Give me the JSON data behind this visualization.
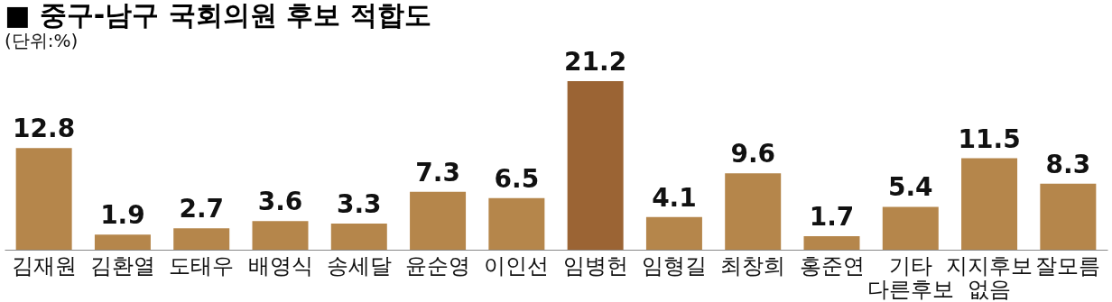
{
  "chart_data": {
    "type": "bar",
    "title": "■ 중구-남구 국회의원 후보 적합도",
    "subtitle": "(단위:%)",
    "categories": [
      "김재원",
      "김환열",
      "도태우",
      "배영식",
      "송세달",
      "윤순영",
      "이인선",
      "임병헌",
      "임형길",
      "최창희",
      "홍준연",
      "기타 다른후보",
      "지지후보 없음",
      "잘모름"
    ],
    "values": [
      12.8,
      1.9,
      2.7,
      3.6,
      3.3,
      7.3,
      6.5,
      21.2,
      4.1,
      9.6,
      1.7,
      5.4,
      11.5,
      8.3
    ],
    "colors": [
      "#b5864b",
      "#b5864b",
      "#b5864b",
      "#b5864b",
      "#b5864b",
      "#b5864b",
      "#b5864b",
      "#9b6434",
      "#b5864b",
      "#b5864b",
      "#b5864b",
      "#b5864b",
      "#b5864b",
      "#b5864b"
    ],
    "data_labels": true
  }
}
